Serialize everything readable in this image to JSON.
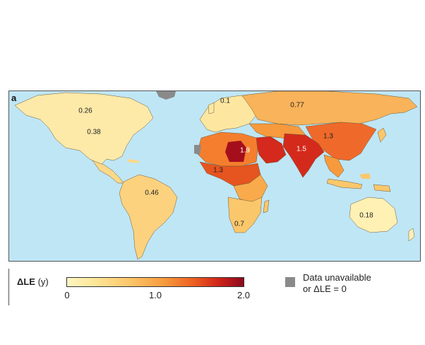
{
  "panel": {
    "letter": "a"
  },
  "colors": {
    "ocean": "#bfe6f5",
    "unavailable": "#8a8a8a",
    "scale": [
      "#fff5c2",
      "#fde79a",
      "#fbc76b",
      "#f79a3d",
      "#ec5f22",
      "#cf2418",
      "#8c0a1e"
    ]
  },
  "regions": [
    {
      "id": "north-america-north",
      "value": "0.26"
    },
    {
      "id": "north-america",
      "value": "0.38"
    },
    {
      "id": "south-america",
      "value": "0.46"
    },
    {
      "id": "europe",
      "value": "0.1"
    },
    {
      "id": "russia",
      "value": "0.77"
    },
    {
      "id": "east-asia",
      "value": "1.3"
    },
    {
      "id": "north-africa",
      "value": "1.9"
    },
    {
      "id": "west-africa",
      "value": "1.3"
    },
    {
      "id": "south-asia",
      "value": "1.5"
    },
    {
      "id": "southern-africa",
      "value": "0.7"
    },
    {
      "id": "australia",
      "value": "0.18"
    }
  ],
  "legend": {
    "symbol": "ΔLE",
    "unit": "(y)",
    "ticks": [
      "0",
      "1.0",
      "2.0"
    ],
    "unavailable_line1": "Data unavailable",
    "unavailable_line2": "or ΔLE = 0"
  }
}
